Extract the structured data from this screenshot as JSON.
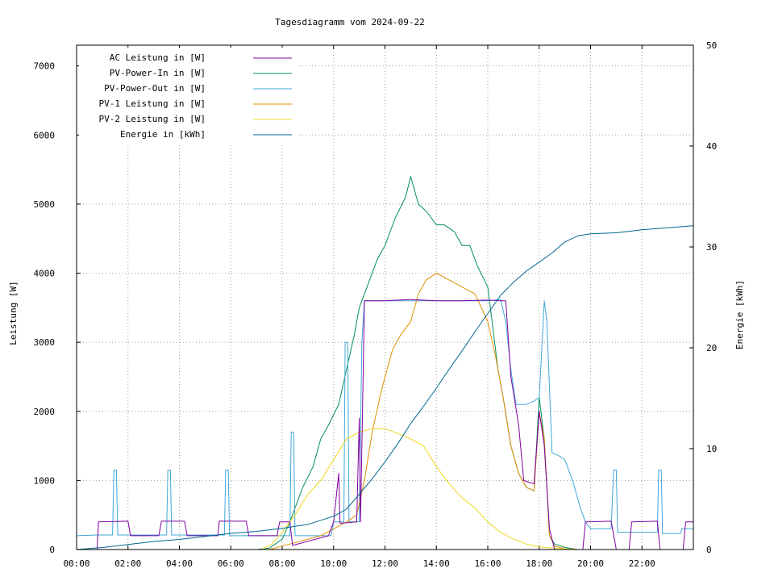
{
  "chart_data": {
    "type": "line",
    "title": "Tagesdiagramm vom 2024-09-22",
    "ylabel": "Leistung [W]",
    "y2label": "Energie in [kWh]",
    "x_ticks": [
      "00:00",
      "02:00",
      "04:00",
      "06:00",
      "08:00",
      "10:00",
      "12:00",
      "14:00",
      "16:00",
      "18:00",
      "20:00",
      "22:00"
    ],
    "xlim_hours": [
      0,
      24
    ],
    "ylim": [
      0,
      7300
    ],
    "y_ticks": [
      0,
      1000,
      2000,
      3000,
      4000,
      5000,
      6000,
      7000
    ],
    "y2lim": [
      0,
      50
    ],
    "y2_ticks": [
      0,
      10,
      20,
      30,
      40,
      50
    ],
    "y2label_text": "Energie [kWh]",
    "grid": true,
    "legend_position": "top-left",
    "series": [
      {
        "name": "AC Leistung in [W]",
        "color": "#8000a0",
        "axis": "y1",
        "points": [
          [
            0,
            0
          ],
          [
            0.8,
            0
          ],
          [
            0.85,
            400
          ],
          [
            2.0,
            410
          ],
          [
            2.1,
            200
          ],
          [
            3.2,
            200
          ],
          [
            3.3,
            410
          ],
          [
            4.2,
            410
          ],
          [
            4.3,
            200
          ],
          [
            5.5,
            200
          ],
          [
            5.55,
            410
          ],
          [
            6.6,
            410
          ],
          [
            6.7,
            200
          ],
          [
            7.8,
            200
          ],
          [
            7.9,
            400
          ],
          [
            8.3,
            400
          ],
          [
            8.4,
            60
          ],
          [
            9.8,
            200
          ],
          [
            10.0,
            400
          ],
          [
            10.2,
            1100
          ],
          [
            10.25,
            380
          ],
          [
            10.9,
            400
          ],
          [
            11.0,
            1900
          ],
          [
            11.05,
            400
          ],
          [
            11.2,
            3600
          ],
          [
            12.0,
            3600
          ],
          [
            13.0,
            3620
          ],
          [
            14.0,
            3600
          ],
          [
            15.0,
            3600
          ],
          [
            16.0,
            3610
          ],
          [
            16.5,
            3600
          ],
          [
            16.7,
            3600
          ],
          [
            16.9,
            2500
          ],
          [
            17.2,
            1800
          ],
          [
            17.4,
            1000
          ],
          [
            17.8,
            950
          ],
          [
            18.0,
            2000
          ],
          [
            18.2,
            1500
          ],
          [
            18.4,
            300
          ],
          [
            18.6,
            0
          ],
          [
            19.7,
            0
          ],
          [
            19.8,
            400
          ],
          [
            20.8,
            410
          ],
          [
            21.0,
            0
          ],
          [
            21.5,
            0
          ],
          [
            21.6,
            400
          ],
          [
            22.6,
            410
          ],
          [
            22.7,
            0
          ],
          [
            23.6,
            0
          ],
          [
            23.7,
            400
          ],
          [
            24,
            400
          ]
        ]
      },
      {
        "name": "PV-Power-In in [W]",
        "color": "#009060",
        "axis": "y1",
        "points": [
          [
            0,
            0
          ],
          [
            7.0,
            0
          ],
          [
            7.5,
            20
          ],
          [
            8.0,
            150
          ],
          [
            8.3,
            400
          ],
          [
            8.5,
            600
          ],
          [
            8.8,
            900
          ],
          [
            9.2,
            1200
          ],
          [
            9.5,
            1600
          ],
          [
            9.8,
            1800
          ],
          [
            10.2,
            2100
          ],
          [
            10.5,
            2600
          ],
          [
            10.8,
            3100
          ],
          [
            11.0,
            3500
          ],
          [
            11.3,
            3800
          ],
          [
            11.7,
            4200
          ],
          [
            12.0,
            4400
          ],
          [
            12.4,
            4800
          ],
          [
            12.8,
            5100
          ],
          [
            13.0,
            5400
          ],
          [
            13.3,
            5000
          ],
          [
            13.6,
            4900
          ],
          [
            14.0,
            4700
          ],
          [
            14.3,
            4700
          ],
          [
            14.7,
            4600
          ],
          [
            15.0,
            4400
          ],
          [
            15.3,
            4400
          ],
          [
            15.6,
            4100
          ],
          [
            16.0,
            3800
          ],
          [
            16.2,
            3200
          ],
          [
            16.4,
            2600
          ],
          [
            16.6,
            2200
          ],
          [
            16.9,
            1500
          ],
          [
            17.2,
            1100
          ],
          [
            17.5,
            900
          ],
          [
            17.8,
            850
          ],
          [
            18.0,
            2200
          ],
          [
            18.2,
            1600
          ],
          [
            18.4,
            200
          ],
          [
            18.6,
            80
          ],
          [
            19.0,
            30
          ],
          [
            19.5,
            0
          ],
          [
            24,
            0
          ]
        ]
      },
      {
        "name": "PV-Power-Out in [W]",
        "color": "#40a8d8",
        "axis": "y1",
        "points": [
          [
            0,
            200
          ],
          [
            0.8,
            210
          ],
          [
            1.4,
            210
          ],
          [
            1.45,
            1150
          ],
          [
            1.55,
            1150
          ],
          [
            1.6,
            210
          ],
          [
            3.5,
            210
          ],
          [
            3.55,
            1150
          ],
          [
            3.65,
            1150
          ],
          [
            3.7,
            210
          ],
          [
            5.75,
            210
          ],
          [
            5.8,
            1150
          ],
          [
            5.9,
            1150
          ],
          [
            5.95,
            200
          ],
          [
            7.8,
            200
          ],
          [
            8.3,
            200
          ],
          [
            8.35,
            1700
          ],
          [
            8.45,
            1700
          ],
          [
            8.5,
            200
          ],
          [
            9.9,
            200
          ],
          [
            10.0,
            400
          ],
          [
            10.4,
            400
          ],
          [
            10.45,
            3000
          ],
          [
            10.55,
            3000
          ],
          [
            10.6,
            400
          ],
          [
            11.0,
            400
          ],
          [
            11.1,
            3000
          ],
          [
            11.2,
            3600
          ],
          [
            12.0,
            3600
          ],
          [
            13.0,
            3600
          ],
          [
            14.0,
            3600
          ],
          [
            15.0,
            3600
          ],
          [
            16.0,
            3600
          ],
          [
            16.5,
            3620
          ],
          [
            16.7,
            3300
          ],
          [
            16.9,
            2600
          ],
          [
            17.1,
            2100
          ],
          [
            17.5,
            2100
          ],
          [
            17.8,
            2150
          ],
          [
            18.0,
            2200
          ],
          [
            18.2,
            3600
          ],
          [
            18.3,
            3300
          ],
          [
            18.5,
            1400
          ],
          [
            18.8,
            1350
          ],
          [
            19.0,
            1300
          ],
          [
            19.3,
            1000
          ],
          [
            19.6,
            600
          ],
          [
            19.8,
            400
          ],
          [
            20.0,
            300
          ],
          [
            20.8,
            300
          ],
          [
            20.9,
            1150
          ],
          [
            21.0,
            1150
          ],
          [
            21.05,
            250
          ],
          [
            22.6,
            250
          ],
          [
            22.65,
            1150
          ],
          [
            22.75,
            1150
          ],
          [
            22.8,
            230
          ],
          [
            23.5,
            230
          ],
          [
            23.55,
            300
          ],
          [
            24,
            300
          ]
        ]
      },
      {
        "name": "PV-1 Leistung in [W]",
        "color": "#e09000",
        "axis": "y1",
        "points": [
          [
            0,
            0
          ],
          [
            7.5,
            0
          ],
          [
            8.3,
            80
          ],
          [
            9.0,
            150
          ],
          [
            9.5,
            200
          ],
          [
            10.0,
            300
          ],
          [
            10.5,
            400
          ],
          [
            10.9,
            500
          ],
          [
            11.2,
            1000
          ],
          [
            11.5,
            1700
          ],
          [
            11.8,
            2200
          ],
          [
            12.0,
            2500
          ],
          [
            12.3,
            2900
          ],
          [
            12.6,
            3100
          ],
          [
            13.0,
            3300
          ],
          [
            13.3,
            3700
          ],
          [
            13.6,
            3900
          ],
          [
            14.0,
            4000
          ],
          [
            14.5,
            3900
          ],
          [
            15.0,
            3800
          ],
          [
            15.5,
            3700
          ],
          [
            16.0,
            3300
          ],
          [
            16.3,
            2800
          ],
          [
            16.6,
            2200
          ],
          [
            16.9,
            1500
          ],
          [
            17.2,
            1100
          ],
          [
            17.5,
            900
          ],
          [
            17.8,
            850
          ],
          [
            18.0,
            2000
          ],
          [
            18.2,
            1600
          ],
          [
            18.4,
            200
          ],
          [
            18.6,
            50
          ],
          [
            19.0,
            10
          ],
          [
            19.5,
            0
          ],
          [
            24,
            0
          ]
        ]
      },
      {
        "name": "PV-2 Leistung in [W]",
        "color": "#f0d820",
        "axis": "y1",
        "points": [
          [
            0,
            0
          ],
          [
            7.2,
            0
          ],
          [
            7.6,
            80
          ],
          [
            8.0,
            250
          ],
          [
            8.5,
            500
          ],
          [
            9.0,
            800
          ],
          [
            9.5,
            1000
          ],
          [
            10.0,
            1300
          ],
          [
            10.5,
            1600
          ],
          [
            11.0,
            1700
          ],
          [
            11.5,
            1750
          ],
          [
            12.0,
            1750
          ],
          [
            12.5,
            1680
          ],
          [
            13.0,
            1600
          ],
          [
            13.5,
            1500
          ],
          [
            14.0,
            1200
          ],
          [
            14.5,
            950
          ],
          [
            15.0,
            750
          ],
          [
            15.5,
            600
          ],
          [
            16.0,
            400
          ],
          [
            16.5,
            250
          ],
          [
            17.0,
            150
          ],
          [
            17.5,
            80
          ],
          [
            18.0,
            40
          ],
          [
            18.5,
            20
          ],
          [
            19.0,
            10
          ],
          [
            19.5,
            0
          ],
          [
            24,
            0
          ]
        ]
      },
      {
        "name": "Energie in [kWh]",
        "color": "#006890",
        "axis": "y2",
        "points": [
          [
            0,
            0
          ],
          [
            1.0,
            0.2
          ],
          [
            2.0,
            0.5
          ],
          [
            3.0,
            0.8
          ],
          [
            4.0,
            1.0
          ],
          [
            5.0,
            1.3
          ],
          [
            6.0,
            1.6
          ],
          [
            7.0,
            1.8
          ],
          [
            8.0,
            2.1
          ],
          [
            9.0,
            2.5
          ],
          [
            10.0,
            3.3
          ],
          [
            10.5,
            4.0
          ],
          [
            11.0,
            5.5
          ],
          [
            11.5,
            7.0
          ],
          [
            12.0,
            8.7
          ],
          [
            12.5,
            10.5
          ],
          [
            13.0,
            12.5
          ],
          [
            13.5,
            14.2
          ],
          [
            14.0,
            16.0
          ],
          [
            14.5,
            17.9
          ],
          [
            15.0,
            19.7
          ],
          [
            15.5,
            21.6
          ],
          [
            16.0,
            23.4
          ],
          [
            16.5,
            25.2
          ],
          [
            17.0,
            26.5
          ],
          [
            17.5,
            27.6
          ],
          [
            18.0,
            28.5
          ],
          [
            18.5,
            29.4
          ],
          [
            19.0,
            30.5
          ],
          [
            19.5,
            31.1
          ],
          [
            20.0,
            31.3
          ],
          [
            21.0,
            31.4
          ],
          [
            22.0,
            31.7
          ],
          [
            23.0,
            31.9
          ],
          [
            24.0,
            32.1
          ]
        ]
      }
    ]
  }
}
